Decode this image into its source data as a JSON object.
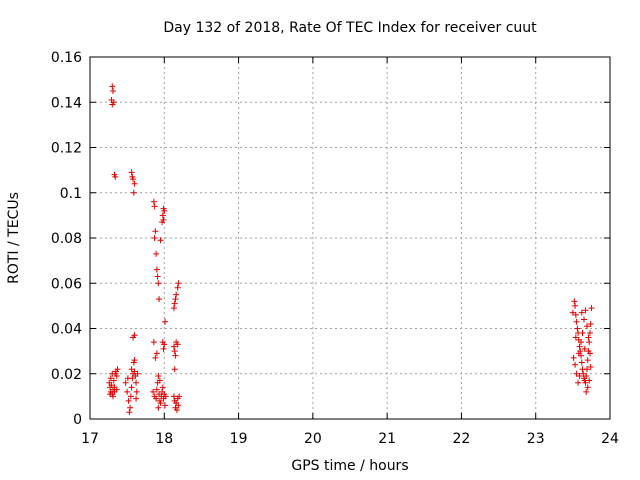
{
  "chart_data": {
    "type": "scatter",
    "title": "Day 132 of 2018, Rate Of TEC Index for receiver cuut",
    "xlabel": "GPS time / hours",
    "ylabel": "ROTI / TECUs",
    "xlim": [
      17,
      24
    ],
    "ylim": [
      0,
      0.16
    ],
    "xticks": [
      "17",
      "18",
      "19",
      "20",
      "21",
      "22",
      "23",
      "24"
    ],
    "yticks": [
      "0",
      "0.02",
      "0.04",
      "0.06",
      "0.08",
      "0.1",
      "0.12",
      "0.14",
      "0.16"
    ],
    "grid": true,
    "marker": "+",
    "color": "#e00000",
    "series": [
      {
        "name": "ROTI",
        "points": [
          [
            17.3,
            0.147
          ],
          [
            17.31,
            0.145
          ],
          [
            17.29,
            0.141
          ],
          [
            17.32,
            0.14
          ],
          [
            17.3,
            0.139
          ],
          [
            17.33,
            0.108
          ],
          [
            17.34,
            0.107
          ],
          [
            17.26,
            0.016
          ],
          [
            17.27,
            0.014
          ],
          [
            17.28,
            0.012
          ],
          [
            17.29,
            0.015
          ],
          [
            17.3,
            0.011
          ],
          [
            17.31,
            0.013
          ],
          [
            17.32,
            0.017
          ],
          [
            17.33,
            0.012
          ],
          [
            17.34,
            0.02
          ],
          [
            17.35,
            0.021
          ],
          [
            17.36,
            0.019
          ],
          [
            17.37,
            0.022
          ],
          [
            17.3,
            0.02
          ],
          [
            17.28,
            0.018
          ],
          [
            17.33,
            0.014
          ],
          [
            17.27,
            0.011
          ],
          [
            17.36,
            0.013
          ],
          [
            17.31,
            0.01
          ],
          [
            17.56,
            0.109
          ],
          [
            17.58,
            0.106
          ],
          [
            17.6,
            0.104
          ],
          [
            17.59,
            0.1
          ],
          [
            17.57,
            0.107
          ],
          [
            17.6,
            0.037
          ],
          [
            17.58,
            0.036
          ],
          [
            17.48,
            0.016
          ],
          [
            17.5,
            0.012
          ],
          [
            17.52,
            0.008
          ],
          [
            17.54,
            0.005
          ],
          [
            17.55,
            0.01
          ],
          [
            17.56,
            0.014
          ],
          [
            17.57,
            0.018
          ],
          [
            17.58,
            0.02
          ],
          [
            17.6,
            0.021
          ],
          [
            17.61,
            0.019
          ],
          [
            17.62,
            0.016
          ],
          [
            17.63,
            0.012
          ],
          [
            17.59,
            0.025
          ],
          [
            17.6,
            0.026
          ],
          [
            17.62,
            0.009
          ],
          [
            17.53,
            0.003
          ],
          [
            17.51,
            0.018
          ],
          [
            17.56,
            0.022
          ],
          [
            17.64,
            0.02
          ],
          [
            17.86,
            0.096
          ],
          [
            17.87,
            0.094
          ],
          [
            17.88,
            0.083
          ],
          [
            17.87,
            0.08
          ],
          [
            17.89,
            0.073
          ],
          [
            17.9,
            0.066
          ],
          [
            17.91,
            0.063
          ],
          [
            17.92,
            0.06
          ],
          [
            17.93,
            0.053
          ],
          [
            17.95,
            0.079
          ],
          [
            17.97,
            0.087
          ],
          [
            17.98,
            0.09
          ],
          [
            17.99,
            0.093
          ],
          [
            18.0,
            0.092
          ],
          [
            17.99,
            0.088
          ],
          [
            17.98,
            0.034
          ],
          [
            17.99,
            0.031
          ],
          [
            18.0,
            0.033
          ],
          [
            18.01,
            0.043
          ],
          [
            17.86,
            0.034
          ],
          [
            17.88,
            0.027
          ],
          [
            17.9,
            0.029
          ],
          [
            17.85,
            0.012
          ],
          [
            17.87,
            0.01
          ],
          [
            17.89,
            0.009
          ],
          [
            17.9,
            0.013
          ],
          [
            17.91,
            0.016
          ],
          [
            17.92,
            0.019
          ],
          [
            17.93,
            0.011
          ],
          [
            17.94,
            0.008
          ],
          [
            17.95,
            0.007
          ],
          [
            17.96,
            0.01
          ],
          [
            17.97,
            0.012
          ],
          [
            17.98,
            0.014
          ],
          [
            17.99,
            0.009
          ],
          [
            18.0,
            0.011
          ],
          [
            18.01,
            0.006
          ],
          [
            18.02,
            0.01
          ],
          [
            17.92,
            0.005
          ],
          [
            17.94,
            0.017
          ],
          [
            18.13,
            0.049
          ],
          [
            18.14,
            0.051
          ],
          [
            18.15,
            0.053
          ],
          [
            18.16,
            0.055
          ],
          [
            18.18,
            0.058
          ],
          [
            18.19,
            0.06
          ],
          [
            18.13,
            0.032
          ],
          [
            18.14,
            0.03
          ],
          [
            18.15,
            0.028
          ],
          [
            18.16,
            0.034
          ],
          [
            18.18,
            0.033
          ],
          [
            18.14,
            0.022
          ],
          [
            18.13,
            0.01
          ],
          [
            18.14,
            0.008
          ],
          [
            18.15,
            0.005
          ],
          [
            18.16,
            0.007
          ],
          [
            18.17,
            0.004
          ],
          [
            18.18,
            0.009
          ],
          [
            18.19,
            0.006
          ],
          [
            18.2,
            0.01
          ],
          [
            23.5,
            0.047
          ],
          [
            23.52,
            0.052
          ],
          [
            23.53,
            0.05
          ],
          [
            23.54,
            0.046
          ],
          [
            23.55,
            0.043
          ],
          [
            23.56,
            0.04
          ],
          [
            23.57,
            0.038
          ],
          [
            23.58,
            0.035
          ],
          [
            23.59,
            0.032
          ],
          [
            23.6,
            0.03
          ],
          [
            23.61,
            0.028
          ],
          [
            23.62,
            0.025
          ],
          [
            23.63,
            0.022
          ],
          [
            23.64,
            0.02
          ],
          [
            23.65,
            0.018
          ],
          [
            23.66,
            0.017
          ],
          [
            23.67,
            0.016
          ],
          [
            23.68,
            0.019
          ],
          [
            23.69,
            0.022
          ],
          [
            23.7,
            0.026
          ],
          [
            23.71,
            0.03
          ],
          [
            23.72,
            0.034
          ],
          [
            23.73,
            0.038
          ],
          [
            23.74,
            0.042
          ],
          [
            23.75,
            0.049
          ],
          [
            23.51,
            0.027
          ],
          [
            23.53,
            0.024
          ],
          [
            23.55,
            0.02
          ],
          [
            23.57,
            0.016
          ],
          [
            23.59,
            0.019
          ],
          [
            23.61,
            0.034
          ],
          [
            23.63,
            0.038
          ],
          [
            23.65,
            0.044
          ],
          [
            23.67,
            0.048
          ],
          [
            23.69,
            0.041
          ],
          [
            23.71,
            0.036
          ],
          [
            23.73,
            0.029
          ],
          [
            23.74,
            0.023
          ],
          [
            23.72,
            0.017
          ],
          [
            23.7,
            0.014
          ],
          [
            23.66,
            0.031
          ],
          [
            23.62,
            0.047
          ],
          [
            23.58,
            0.029
          ],
          [
            23.54,
            0.036
          ],
          [
            23.68,
            0.012
          ]
        ]
      }
    ]
  }
}
